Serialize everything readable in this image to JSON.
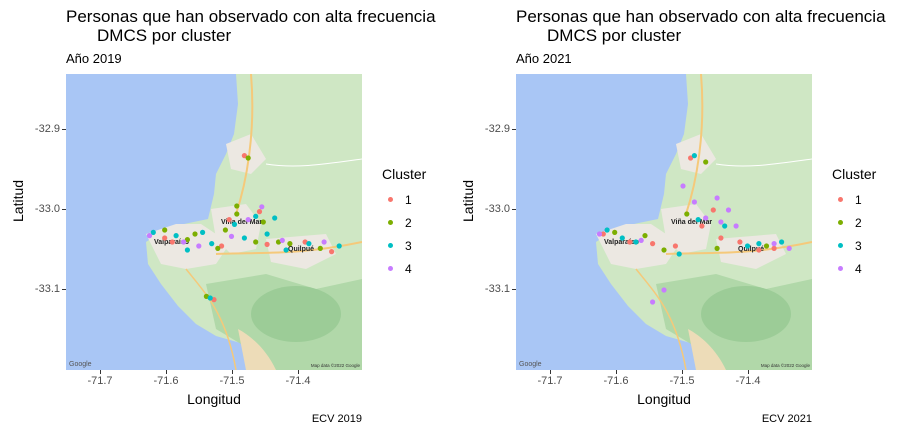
{
  "legend": {
    "title": "Cluster",
    "items": [
      {
        "label": "1",
        "color": "#F8766D"
      },
      {
        "label": "2",
        "color": "#7CAE00"
      },
      {
        "label": "3",
        "color": "#00BFC4"
      },
      {
        "label": "4",
        "color": "#C77CFF"
      }
    ]
  },
  "axes": {
    "xlabel": "Longitud",
    "ylabel": "Latitud",
    "xticks": [
      "-71.7",
      "-71.6",
      "-71.5",
      "-71.4"
    ],
    "yticks": [
      "-32.9",
      "-33.0",
      "-33.1"
    ]
  },
  "map_labels": {
    "valparaiso": "Valparaíso",
    "vina": "Viña del Mar",
    "quilpue": "Quilpué",
    "attribution": "Map data ©2022 Google",
    "google": "Google"
  },
  "panels": [
    {
      "title_line1": "Personas que han observado con alta frecuencia",
      "title_line2": "DMCS por cluster",
      "subtitle": "Año 2019",
      "caption": "ECV 2019"
    },
    {
      "title_line1": "Personas que han observado con alta frecuencia",
      "title_line2": "DMCS por cluster",
      "subtitle": "Año 2021",
      "caption": "ECV 2021"
    }
  ],
  "chart_data": [
    {
      "type": "scatter",
      "title": "Personas que han observado con alta frecuencia DMCS por cluster",
      "subtitle": "Año 2019",
      "caption": "ECV 2019",
      "xlabel": "Longitud",
      "ylabel": "Latitud",
      "xlim": [
        -71.77,
        -71.38
      ],
      "ylim": [
        -33.2,
        -32.83
      ],
      "legend_position": "right",
      "series": [
        {
          "name": "1",
          "points": [
            [
              -71.535,
              -32.932
            ],
            [
              -71.63,
              -33.04
            ],
            [
              -71.555,
              -33.012
            ],
            [
              -71.505,
              -33.043
            ],
            [
              -71.42,
              -33.052
            ],
            [
              -71.575,
              -33.112
            ],
            [
              -71.515,
              -33.002
            ],
            [
              -71.565,
              -33.045
            ],
            [
              -71.455,
              -33.04
            ],
            [
              -71.64,
              -33.035
            ]
          ]
        },
        {
          "name": "2",
          "points": [
            [
              -71.64,
              -33.025
            ],
            [
              -71.6,
              -33.03
            ],
            [
              -71.545,
              -33.005
            ],
            [
              -71.52,
              -33.04
            ],
            [
              -71.475,
              -33.042
            ],
            [
              -71.435,
              -33.048
            ],
            [
              -71.585,
              -33.108
            ],
            [
              -71.53,
              -32.935
            ],
            [
              -71.545,
              -32.995
            ],
            [
              -71.61,
              -33.037
            ],
            [
              -71.49,
              -33.04
            ],
            [
              -71.51,
              -33.015
            ],
            [
              -71.57,
              -33.048
            ],
            [
              -71.56,
              -33.025
            ]
          ]
        },
        {
          "name": "3",
          "points": [
            [
              -71.655,
              -33.028
            ],
            [
              -71.625,
              -33.032
            ],
            [
              -71.61,
              -33.05
            ],
            [
              -71.578,
              -33.042
            ],
            [
              -71.548,
              -33.018
            ],
            [
              -71.52,
              -33.008
            ],
            [
              -71.505,
              -33.03
            ],
            [
              -71.48,
              -33.05
            ],
            [
              -71.45,
              -33.042
            ],
            [
              -71.41,
              -33.045
            ],
            [
              -71.58,
              -33.11
            ],
            [
              -71.59,
              -33.028
            ],
            [
              -71.535,
              -33.035
            ],
            [
              -71.495,
              -33.01
            ]
          ]
        },
        {
          "name": "4",
          "points": [
            [
              -71.66,
              -33.032
            ],
            [
              -71.615,
              -33.04
            ],
            [
              -71.53,
              -33.012
            ],
            [
              -71.512,
              -32.996
            ],
            [
              -71.485,
              -33.038
            ],
            [
              -71.43,
              -33.04
            ],
            [
              -71.595,
              -33.045
            ],
            [
              -71.552,
              -33.033
            ]
          ]
        }
      ]
    },
    {
      "type": "scatter",
      "title": "Personas que han observado con alta frecuencia DMCS por cluster",
      "subtitle": "Año 2021",
      "caption": "ECV 2021",
      "xlabel": "Longitud",
      "ylabel": "Latitud",
      "xlim": [
        -71.77,
        -71.38
      ],
      "ylim": [
        -33.2,
        -32.83
      ],
      "legend_position": "right",
      "series": [
        {
          "name": "1",
          "points": [
            [
              -71.655,
              -33.03
            ],
            [
              -71.62,
              -33.04
            ],
            [
              -71.59,
              -33.042
            ],
            [
              -71.56,
              -33.045
            ],
            [
              -71.525,
              -33.02
            ],
            [
              -71.51,
              -33.0
            ],
            [
              -71.45,
              -33.05
            ],
            [
              -71.43,
              -33.048
            ],
            [
              -71.54,
              -32.935
            ],
            [
              -71.5,
              -33.035
            ],
            [
              -71.475,
              -33.04
            ]
          ]
        },
        {
          "name": "2",
          "points": [
            [
              -71.64,
              -33.028
            ],
            [
              -71.6,
              -33.032
            ],
            [
              -71.545,
              -33.005
            ],
            [
              -71.505,
              -33.048
            ],
            [
              -71.44,
              -33.045
            ],
            [
              -71.52,
              -32.94
            ],
            [
              -71.575,
              -33.05
            ]
          ]
        },
        {
          "name": "3",
          "points": [
            [
              -71.65,
              -33.025
            ],
            [
              -71.63,
              -33.035
            ],
            [
              -71.612,
              -33.04
            ],
            [
              -71.53,
              -33.012
            ],
            [
              -71.495,
              -33.02
            ],
            [
              -71.465,
              -33.045
            ],
            [
              -71.42,
              -33.04
            ],
            [
              -71.45,
              -33.042
            ],
            [
              -71.555,
              -33.055
            ],
            [
              -71.535,
              -32.932
            ]
          ]
        },
        {
          "name": "4",
          "points": [
            [
              -71.66,
              -33.03
            ],
            [
              -71.605,
              -33.038
            ],
            [
              -71.535,
              -32.99
            ],
            [
              -71.52,
              -33.01
            ],
            [
              -71.505,
              -32.985
            ],
            [
              -71.49,
              -33.0
            ],
            [
              -71.5,
              -33.015
            ],
            [
              -71.48,
              -33.02
            ],
            [
              -71.575,
              -33.1
            ],
            [
              -71.59,
              -33.115
            ],
            [
              -71.55,
              -32.97
            ],
            [
              -71.43,
              -33.042
            ],
            [
              -71.41,
              -33.048
            ]
          ]
        }
      ]
    }
  ]
}
